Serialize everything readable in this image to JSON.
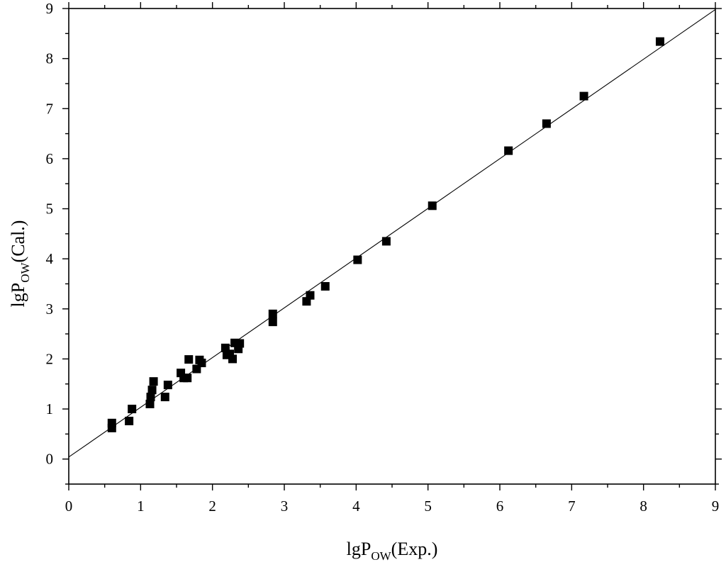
{
  "chart_data": {
    "type": "scatter",
    "title": "",
    "xlabel": {
      "prefix": "lgP",
      "subscript": "OW",
      "suffix": "(Exp.)"
    },
    "ylabel": {
      "prefix": "lgP",
      "subscript": "OW",
      "suffix": "(Cal.)"
    },
    "xlim": [
      0,
      9
    ],
    "ylim": [
      -0.5,
      9
    ],
    "xticks": [
      "0",
      "1",
      "2",
      "3",
      "4",
      "5",
      "6",
      "7",
      "8",
      "9"
    ],
    "yticks": [
      "0",
      "1",
      "2",
      "3",
      "4",
      "5",
      "6",
      "7",
      "8",
      "9"
    ],
    "grid": false,
    "legend": "none",
    "marker": "square",
    "marker_color": "#000000",
    "fit_line": {
      "x": [
        0,
        9
      ],
      "y": [
        0.04,
        8.98
      ]
    },
    "points": {
      "x": [
        0.6,
        0.6,
        0.84,
        0.88,
        1.13,
        1.14,
        1.16,
        1.18,
        1.34,
        1.38,
        1.56,
        1.6,
        1.65,
        1.67,
        1.78,
        1.82,
        1.85,
        2.18,
        2.2,
        2.24,
        2.28,
        2.31,
        2.36,
        2.38,
        2.84,
        2.84,
        3.31,
        3.36,
        3.57,
        4.02,
        4.42,
        5.06,
        6.12,
        6.65,
        7.17,
        8.23
      ],
      "y": [
        0.62,
        0.72,
        0.76,
        1.0,
        1.1,
        1.24,
        1.38,
        1.55,
        1.24,
        1.48,
        1.72,
        1.62,
        1.62,
        1.99,
        1.8,
        1.98,
        1.92,
        2.22,
        2.08,
        2.1,
        2.0,
        2.32,
        2.2,
        2.31,
        2.74,
        2.9,
        3.15,
        3.27,
        3.45,
        3.98,
        4.35,
        5.06,
        6.16,
        6.7,
        7.25,
        8.34
      ]
    }
  }
}
